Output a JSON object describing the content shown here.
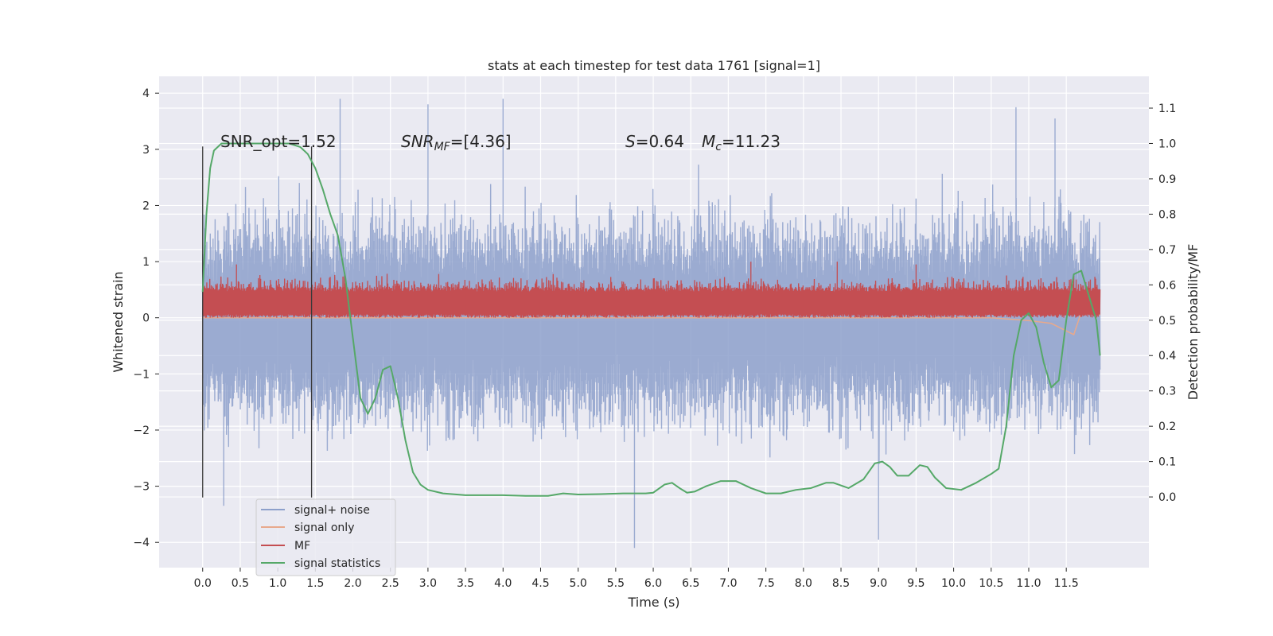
{
  "chart_data": {
    "type": "line",
    "title": "stats at each timestep for test data 1761 [signal=1]",
    "xlabel": "Time (s)",
    "ylabel": "Whitened strain",
    "ylabel_right": "Detection probability/MF",
    "xlim": [
      -0.58,
      12.6
    ],
    "ylim": [
      -4.45,
      4.3
    ],
    "ylim_right": [
      -0.2,
      1.19
    ],
    "x_ticks": [
      "0.0",
      "0.5",
      "1.0",
      "1.5",
      "2.0",
      "2.5",
      "3.0",
      "3.5",
      "4.0",
      "4.5",
      "5.0",
      "5.5",
      "6.0",
      "6.5",
      "7.0",
      "7.5",
      "8.0",
      "8.5",
      "9.0",
      "9.5",
      "10.0",
      "10.5",
      "11.0",
      "11.5"
    ],
    "y_ticks": [
      "4",
      "3",
      "2",
      "1",
      "0",
      "−1",
      "−2",
      "−3",
      "−4"
    ],
    "y_ticks_right": [
      "1.1",
      "1.0",
      "0.9",
      "0.8",
      "0.7",
      "0.6",
      "0.5",
      "0.4",
      "0.3",
      "0.2",
      "0.1",
      "0.0"
    ],
    "grid": true,
    "legend_position": "lower left",
    "vlines": [
      0.0,
      1.45
    ],
    "annotations": {
      "snr_opt": "SNR_opt=1.52",
      "snr_mf_italic": "SNR",
      "snr_mf_sub": "MF",
      "snr_mf_value": "=[4.36]",
      "s_italic": "S",
      "s_value": "=0.64",
      "mc_italic": "M",
      "mc_sub": "c",
      "mc_value": "=11.23"
    },
    "series": [
      {
        "name": "signal+ noise",
        "color": "#8da0cb",
        "axis": "left",
        "x_range": [
          0.0,
          11.95
        ],
        "envelope": {
          "upper_typical": 2.0,
          "lower_typical": -2.1,
          "upper_max": 3.9,
          "lower_min": -4.1
        },
        "peaks": [
          [
            1.83,
            3.9
          ],
          [
            3.0,
            3.8
          ],
          [
            4.0,
            3.9
          ],
          [
            10.83,
            3.75
          ],
          [
            11.35,
            3.55
          ],
          [
            5.75,
            -4.1
          ],
          [
            9.0,
            -3.95
          ],
          [
            0.28,
            -3.35
          ]
        ]
      },
      {
        "name": "signal only",
        "color": "#e8a98c",
        "axis": "left",
        "x_range": [
          0.0,
          11.95
        ],
        "note": "near zero; small excursions after 10.5 s",
        "points": [
          [
            10.5,
            0.0
          ],
          [
            11.0,
            -0.05
          ],
          [
            11.3,
            -0.1
          ],
          [
            11.6,
            -0.3
          ],
          [
            11.7,
            0.1
          ],
          [
            11.95,
            0.05
          ]
        ]
      },
      {
        "name": "MF",
        "color": "#c44e52",
        "axis": "left",
        "x_range": [
          0.0,
          11.95
        ],
        "band": {
          "low": 0.0,
          "high": 0.55,
          "max": 1.0
        },
        "peaks": [
          [
            7.3,
            1.0
          ],
          [
            8.45,
            1.0
          ],
          [
            9.5,
            0.95
          ],
          [
            0.45,
            0.95
          ],
          [
            11.6,
            0.75
          ]
        ]
      },
      {
        "name": "signal statistics",
        "color": "#55a868",
        "axis": "right",
        "x": [
          0.0,
          0.05,
          0.1,
          0.15,
          0.25,
          0.5,
          0.8,
          1.0,
          1.15,
          1.3,
          1.4,
          1.5,
          1.6,
          1.7,
          1.8,
          1.9,
          2.0,
          2.1,
          2.2,
          2.3,
          2.4,
          2.5,
          2.6,
          2.7,
          2.8,
          2.9,
          3.0,
          3.2,
          3.5,
          3.8,
          4.0,
          4.3,
          4.6,
          4.8,
          5.0,
          5.3,
          5.6,
          5.9,
          6.0,
          6.15,
          6.25,
          6.35,
          6.45,
          6.55,
          6.7,
          6.9,
          7.1,
          7.3,
          7.5,
          7.7,
          7.9,
          8.1,
          8.3,
          8.4,
          8.6,
          8.8,
          8.95,
          9.05,
          9.15,
          9.25,
          9.4,
          9.55,
          9.65,
          9.75,
          9.9,
          10.1,
          10.3,
          10.5,
          10.6,
          10.7,
          10.8,
          10.9,
          11.0,
          11.1,
          11.2,
          11.3,
          11.4,
          11.5,
          11.6,
          11.7,
          11.8,
          11.9,
          11.95
        ],
        "y": [
          0.58,
          0.8,
          0.93,
          0.98,
          1.0,
          1.0,
          1.0,
          1.0,
          1.0,
          0.99,
          0.97,
          0.93,
          0.87,
          0.8,
          0.74,
          0.62,
          0.45,
          0.28,
          0.235,
          0.28,
          0.36,
          0.37,
          0.28,
          0.16,
          0.07,
          0.035,
          0.02,
          0.01,
          0.005,
          0.005,
          0.005,
          0.003,
          0.003,
          0.01,
          0.007,
          0.008,
          0.01,
          0.01,
          0.012,
          0.035,
          0.04,
          0.025,
          0.012,
          0.015,
          0.03,
          0.045,
          0.045,
          0.025,
          0.01,
          0.01,
          0.02,
          0.025,
          0.04,
          0.04,
          0.025,
          0.05,
          0.095,
          0.1,
          0.085,
          0.06,
          0.06,
          0.09,
          0.085,
          0.055,
          0.025,
          0.02,
          0.04,
          0.065,
          0.08,
          0.2,
          0.4,
          0.5,
          0.52,
          0.48,
          0.38,
          0.31,
          0.33,
          0.5,
          0.63,
          0.64,
          0.57,
          0.5,
          0.4
        ]
      }
    ]
  }
}
